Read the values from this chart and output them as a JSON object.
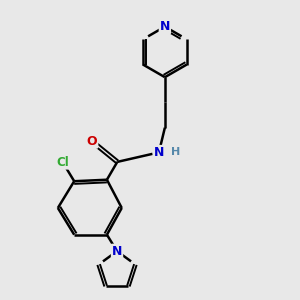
{
  "background_color": "#e8e8e8",
  "bond_color": "#000000",
  "N_color": "#0000cc",
  "O_color": "#cc0000",
  "Cl_color": "#33aa33",
  "H_color": "#5588aa",
  "figsize": [
    3.0,
    3.0
  ],
  "dpi": 100,
  "xlim": [
    0,
    10
  ],
  "ylim": [
    0,
    10
  ]
}
